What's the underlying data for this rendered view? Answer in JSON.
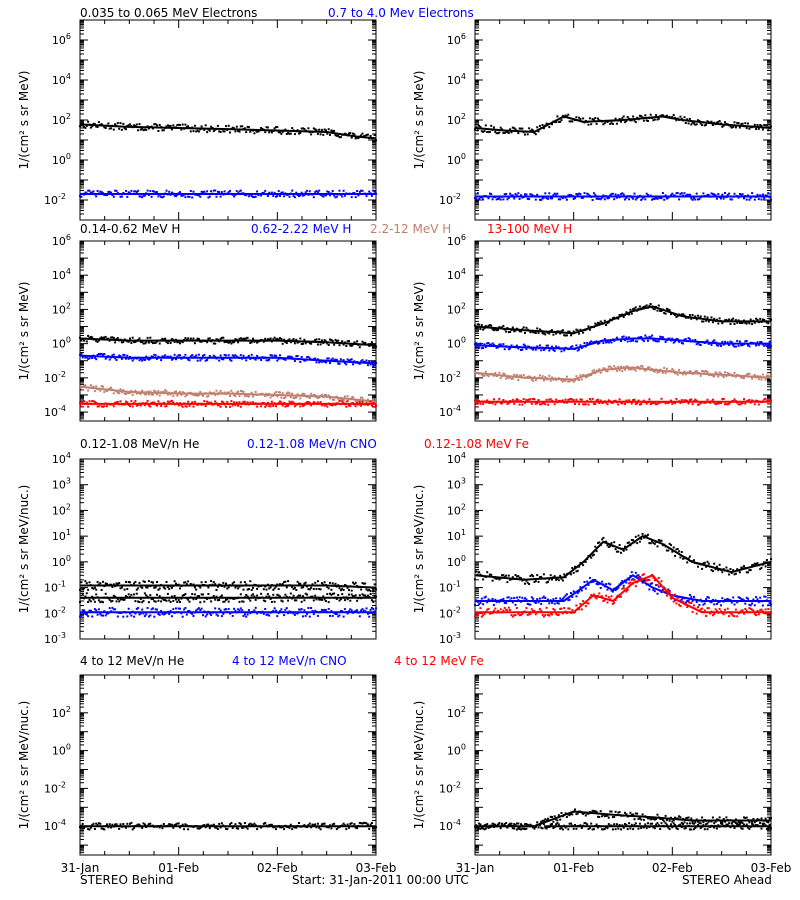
{
  "colors": {
    "black": "#000000",
    "blue": "#0000ff",
    "tan": "#c08070",
    "red": "#ff0000"
  },
  "footer": {
    "left": "STEREO Behind",
    "center": "Start: 31-Jan-2011 00:00 UTC",
    "right": "STEREO Ahead"
  },
  "x_ticks": [
    "31-Jan",
    "01-Feb",
    "02-Feb",
    "03-Feb"
  ],
  "chart_data": [
    {
      "type": "scatter",
      "row": 0,
      "ylabel": "1/(cm² s sr MeV)",
      "yscale": "log",
      "ylim": [
        0.001,
        10000000
      ],
      "yticks": [
        {
          "exp": -2,
          "label": "10-2"
        },
        {
          "exp": 0,
          "label": "100"
        },
        {
          "exp": 2,
          "label": "102"
        },
        {
          "exp": 4,
          "label": "104"
        },
        {
          "exp": 6,
          "label": "106"
        }
      ],
      "legend": [
        {
          "name": "0.035 to 0.065 MeV Electrons",
          "color": "#000000"
        },
        {
          "name": "0.7 to 4.0 Mev Electrons",
          "color": "#0000ff"
        }
      ],
      "panels": [
        {
          "spacecraft": "behind",
          "series": [
            {
              "color": "#000000",
              "x": [
                0,
                0.5,
                1,
                1.5,
                2,
                2.5,
                2.8,
                3
              ],
              "y": [
                60,
                45,
                40,
                35,
                30,
                25,
                15,
                12
              ]
            },
            {
              "color": "#0000ff",
              "x": [
                0,
                0.5,
                1,
                1.5,
                2,
                2.5,
                3
              ],
              "y": [
                0.02,
                0.02,
                0.02,
                0.02,
                0.02,
                0.02,
                0.02
              ]
            }
          ]
        },
        {
          "spacecraft": "ahead",
          "series": [
            {
              "color": "#000000",
              "x": [
                0,
                0.3,
                0.6,
                0.9,
                1.1,
                1.5,
                1.9,
                2.1,
                2.5,
                3
              ],
              "y": [
                40,
                30,
                25,
                150,
                80,
                100,
                150,
                100,
                60,
                40
              ]
            },
            {
              "color": "#0000ff",
              "x": [
                0,
                0.5,
                1,
                1.5,
                2,
                2.5,
                3
              ],
              "y": [
                0.015,
                0.015,
                0.015,
                0.015,
                0.015,
                0.015,
                0.015
              ]
            }
          ]
        }
      ]
    },
    {
      "type": "scatter",
      "row": 1,
      "ylabel": "1/(cm² s sr MeV)",
      "yscale": "log",
      "ylim": [
        3e-05,
        1000000
      ],
      "yticks": [
        {
          "exp": -4,
          "label": "10-4"
        },
        {
          "exp": -2,
          "label": "10-2"
        },
        {
          "exp": 0,
          "label": "100"
        },
        {
          "exp": 2,
          "label": "102"
        },
        {
          "exp": 4,
          "label": "104"
        },
        {
          "exp": 6,
          "label": "106"
        }
      ],
      "legend": [
        {
          "name": "0.14-0.62 MeV H",
          "color": "#000000"
        },
        {
          "name": "0.62-2.22 MeV H",
          "color": "#0000ff"
        },
        {
          "name": "2.2-12 MeV H",
          "color": "#c08070"
        },
        {
          "name": "13-100 MeV H",
          "color": "#ff0000"
        }
      ],
      "panels": [
        {
          "spacecraft": "behind",
          "series": [
            {
              "color": "#000000",
              "x": [
                0,
                0.5,
                1,
                1.5,
                2,
                2.5,
                3
              ],
              "y": [
                2,
                1.5,
                1.5,
                1.5,
                1.5,
                1.2,
                0.8
              ]
            },
            {
              "color": "#0000ff",
              "x": [
                0,
                0.5,
                1,
                1.5,
                2,
                2.5,
                3
              ],
              "y": [
                0.2,
                0.15,
                0.15,
                0.15,
                0.15,
                0.1,
                0.07
              ]
            },
            {
              "color": "#c08070",
              "x": [
                0,
                0.5,
                1,
                1.5,
                2,
                2.5,
                3
              ],
              "y": [
                0.003,
                0.0015,
                0.0012,
                0.0012,
                0.001,
                0.0008,
                0.0004
              ]
            },
            {
              "color": "#ff0000",
              "x": [
                0,
                0.5,
                1,
                1.5,
                2,
                2.5,
                3
              ],
              "y": [
                0.0003,
                0.0003,
                0.0003,
                0.0003,
                0.0003,
                0.0003,
                0.0003
              ]
            }
          ]
        },
        {
          "spacecraft": "ahead",
          "series": [
            {
              "color": "#000000",
              "x": [
                0,
                0.5,
                1,
                1.3,
                1.6,
                1.8,
                2.1,
                2.5,
                3
              ],
              "y": [
                10,
                6,
                4,
                15,
                80,
                150,
                40,
                20,
                20
              ]
            },
            {
              "color": "#0000ff",
              "x": [
                0,
                0.5,
                1,
                1.3,
                1.6,
                1.8,
                2.1,
                2.5,
                3
              ],
              "y": [
                0.8,
                0.6,
                0.5,
                1.5,
                2,
                2,
                1.5,
                1,
                1
              ]
            },
            {
              "color": "#c08070",
              "x": [
                0,
                0.5,
                1,
                1.3,
                1.6,
                1.8,
                2.1,
                2.5,
                3
              ],
              "y": [
                0.02,
                0.01,
                0.008,
                0.03,
                0.04,
                0.03,
                0.02,
                0.015,
                0.01
              ]
            },
            {
              "color": "#ff0000",
              "x": [
                0,
                0.5,
                1,
                1.5,
                2,
                2.5,
                3
              ],
              "y": [
                0.0004,
                0.0004,
                0.0004,
                0.0004,
                0.0004,
                0.0004,
                0.0004
              ]
            }
          ]
        }
      ]
    },
    {
      "type": "scatter",
      "row": 2,
      "ylabel": "1/(cm² s sr MeV/nuc.)",
      "yscale": "log",
      "ylim": [
        0.001,
        10000
      ],
      "yticks": [
        {
          "exp": -3,
          "label": "10-3"
        },
        {
          "exp": -2,
          "label": "10-2"
        },
        {
          "exp": -1,
          "label": "10-1"
        },
        {
          "exp": 0,
          "label": "100"
        },
        {
          "exp": 1,
          "label": "101"
        },
        {
          "exp": 2,
          "label": "102"
        },
        {
          "exp": 3,
          "label": "103"
        },
        {
          "exp": 4,
          "label": "104"
        }
      ],
      "legend": [
        {
          "name": "0.12-1.08 MeV/n He",
          "color": "#000000"
        },
        {
          "name": "0.12-1.08 MeV/n CNO",
          "color": "#0000ff"
        },
        {
          "name": "0.12-1.08 MeV Fe",
          "color": "#ff0000"
        }
      ],
      "panels": [
        {
          "spacecraft": "behind",
          "series": [
            {
              "color": "#000000",
              "x": [
                0,
                0.5,
                1,
                1.5,
                2,
                2.5,
                3
              ],
              "y": [
                0.12,
                0.12,
                0.12,
                0.12,
                0.12,
                0.12,
                0.1
              ]
            },
            {
              "color": "#000000",
              "x": [
                0,
                0.5,
                1,
                1.5,
                2,
                2.5,
                3
              ],
              "y": [
                0.04,
                0.04,
                0.04,
                0.04,
                0.04,
                0.04,
                0.04
              ]
            },
            {
              "color": "#0000ff",
              "x": [
                0,
                0.5,
                1,
                1.5,
                2,
                2.5,
                3
              ],
              "y": [
                0.011,
                0.011,
                0.011,
                0.011,
                0.011,
                0.011,
                0.011
              ]
            }
          ]
        },
        {
          "spacecraft": "ahead",
          "series": [
            {
              "color": "#000000",
              "x": [
                0,
                0.5,
                0.9,
                1.1,
                1.3,
                1.5,
                1.7,
                1.9,
                2.2,
                2.6,
                3
              ],
              "y": [
                0.3,
                0.2,
                0.25,
                1,
                6,
                3,
                10,
                5,
                1,
                0.4,
                1
              ]
            },
            {
              "color": "#0000ff",
              "x": [
                0,
                0.5,
                0.9,
                1.2,
                1.4,
                1.6,
                1.8,
                2.0,
                2.3,
                3
              ],
              "y": [
                0.03,
                0.03,
                0.03,
                0.2,
                0.08,
                0.3,
                0.1,
                0.05,
                0.03,
                0.03
              ]
            },
            {
              "color": "#ff0000",
              "x": [
                0,
                0.5,
                1,
                1.2,
                1.4,
                1.6,
                1.8,
                2.0,
                2.3,
                3
              ],
              "y": [
                0.011,
                0.011,
                0.011,
                0.05,
                0.03,
                0.15,
                0.3,
                0.04,
                0.011,
                0.011
              ]
            }
          ]
        }
      ]
    },
    {
      "type": "scatter",
      "row": 3,
      "ylabel": "1/(cm² s sr MeV/nuc.)",
      "yscale": "log",
      "ylim": [
        3e-06,
        10000
      ],
      "yticks": [
        {
          "exp": -4,
          "label": "10-4"
        },
        {
          "exp": -2,
          "label": "10-2"
        },
        {
          "exp": 0,
          "label": "100"
        },
        {
          "exp": 2,
          "label": "102"
        }
      ],
      "legend": [
        {
          "name": "4 to 12 MeV/n He",
          "color": "#000000"
        },
        {
          "name": "4 to 12 MeV/n CNO",
          "color": "#0000ff"
        },
        {
          "name": "4 to 12 MeV Fe",
          "color": "#ff0000"
        }
      ],
      "panels": [
        {
          "spacecraft": "behind",
          "series": [
            {
              "color": "#000000",
              "x": [
                0,
                0.5,
                1,
                1.5,
                2,
                2.5,
                3
              ],
              "y": [
                0.0001,
                0.0001,
                0.0001,
                0.0001,
                0.0001,
                0.0001,
                0.0001
              ]
            }
          ]
        },
        {
          "spacecraft": "ahead",
          "series": [
            {
              "color": "#000000",
              "x": [
                0,
                0.6,
                1,
                1.4,
                1.8,
                2.2,
                2.6,
                3
              ],
              "y": [
                0.0001,
                0.0001,
                0.0006,
                0.0004,
                0.0003,
                0.0002,
                0.0002,
                0.0002
              ]
            },
            {
              "color": "#000000",
              "x": [
                0.7,
                1.5,
                2.2,
                3
              ],
              "y": [
                0.0001,
                0.0001,
                0.0001,
                0.0001
              ]
            }
          ]
        }
      ]
    }
  ]
}
